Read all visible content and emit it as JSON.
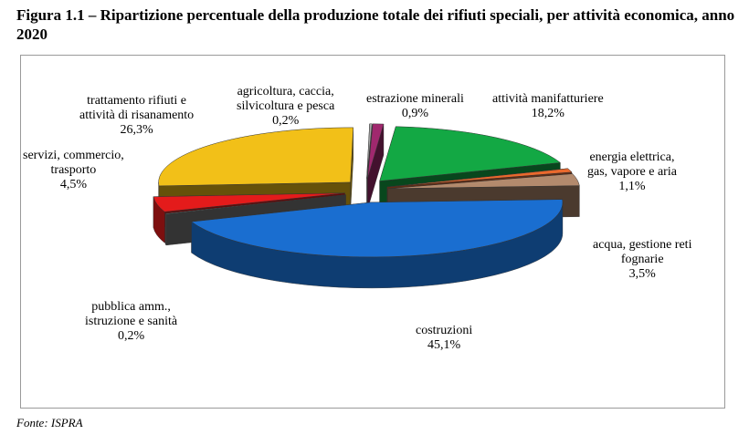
{
  "figure": {
    "title": "Figura 1.1 – Ripartizione percentuale della produzione totale dei rifiuti speciali, per attività economica, anno 2020",
    "source": "Fonte: ISPRA"
  },
  "chart_data": {
    "type": "pie",
    "title": "",
    "unit": "%",
    "legend": "none",
    "slices": [
      {
        "label_lines": [
          "agricoltura, caccia,",
          "silvicoltura e pesca"
        ],
        "value": 0.2,
        "value_label": "0,2%",
        "color": "#a6a6a6"
      },
      {
        "label_lines": [
          "estrazione minerali"
        ],
        "value": 0.9,
        "value_label": "0,9%",
        "color": "#a0286e"
      },
      {
        "label_lines": [
          "attività manifatturiere"
        ],
        "value": 18.2,
        "value_label": "18,2%",
        "color": "#13a844"
      },
      {
        "label_lines": [
          "energia elettrica,",
          "gas, vapore e aria"
        ],
        "value": 1.1,
        "value_label": "1,1%",
        "color": "#e9692d"
      },
      {
        "label_lines": [
          "acqua, gestione reti",
          "fognarie"
        ],
        "value": 3.5,
        "value_label": "3,5%",
        "color": "#b38a6d"
      },
      {
        "label_lines": [
          "costruzioni"
        ],
        "value": 45.1,
        "value_label": "45,1%",
        "color": "#1a6ed0"
      },
      {
        "label_lines": [
          "pubblica amm.,",
          "istruzione e sanità"
        ],
        "value": 0.2,
        "value_label": "0,2%",
        "color": "#7a7a7a"
      },
      {
        "label_lines": [
          "servizi, commercio,",
          "trasporto"
        ],
        "value": 4.5,
        "value_label": "4,5%",
        "color": "#e41b1b"
      },
      {
        "label_lines": [
          "trattamento rifiuti e",
          "attività di risanamento"
        ],
        "value": 26.3,
        "value_label": "26,3%",
        "color": "#f2c018"
      }
    ]
  }
}
